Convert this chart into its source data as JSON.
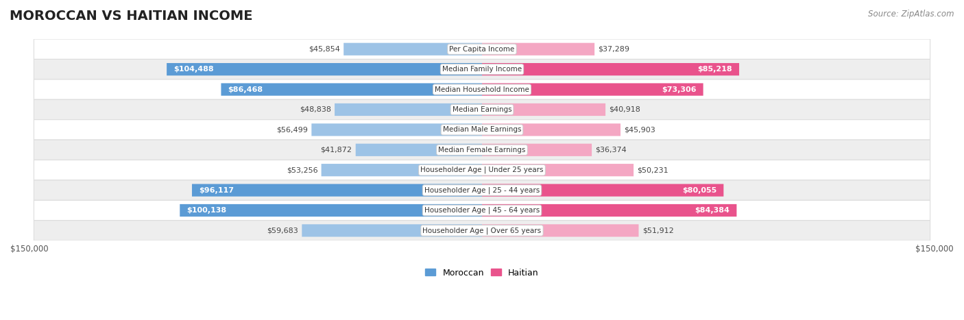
{
  "title": "MOROCCAN VS HAITIAN INCOME",
  "source": "Source: ZipAtlas.com",
  "categories": [
    "Per Capita Income",
    "Median Family Income",
    "Median Household Income",
    "Median Earnings",
    "Median Male Earnings",
    "Median Female Earnings",
    "Householder Age | Under 25 years",
    "Householder Age | 25 - 44 years",
    "Householder Age | 45 - 64 years",
    "Householder Age | Over 65 years"
  ],
  "moroccan_values": [
    45854,
    104488,
    86468,
    48838,
    56499,
    41872,
    53256,
    96117,
    100138,
    59683
  ],
  "haitian_values": [
    37289,
    85218,
    73306,
    40918,
    45903,
    36374,
    50231,
    80055,
    84384,
    51912
  ],
  "moroccan_labels": [
    "$45,854",
    "$104,488",
    "$86,468",
    "$48,838",
    "$56,499",
    "$41,872",
    "$53,256",
    "$96,117",
    "$100,138",
    "$59,683"
  ],
  "haitian_labels": [
    "$37,289",
    "$85,218",
    "$73,306",
    "$40,918",
    "$45,903",
    "$36,374",
    "$50,231",
    "$80,055",
    "$84,384",
    "$51,912"
  ],
  "moroccan_strong": [
    false,
    true,
    true,
    false,
    false,
    false,
    false,
    true,
    true,
    false
  ],
  "haitian_strong": [
    false,
    true,
    true,
    false,
    false,
    false,
    false,
    true,
    true,
    false
  ],
  "max_value": 150000,
  "moroccan_color_strong": "#5b9bd5",
  "moroccan_color_light": "#9dc3e6",
  "haitian_color_strong": "#e9538c",
  "haitian_color_light": "#f4a7c3",
  "row_bg_white": "#ffffff",
  "row_bg_gray": "#eeeeee",
  "row_border": "#dddddd",
  "label_color_dark": "#444444",
  "title_fontsize": 14,
  "source_fontsize": 8.5,
  "bar_label_fontsize": 8,
  "cat_label_fontsize": 7.5,
  "axis_label_fontsize": 8.5,
  "legend_label": [
    "Moroccan",
    "Haitian"
  ]
}
